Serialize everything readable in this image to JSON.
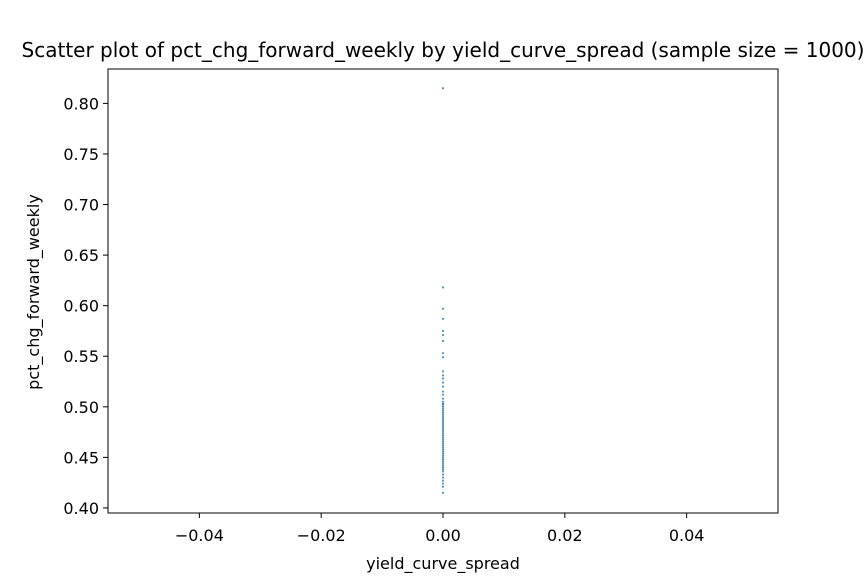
{
  "chart_data": {
    "type": "scatter",
    "title": "Scatter plot of pct_chg_forward_weekly by yield_curve_spread (sample size = 1000)",
    "xlabel": "yield_curve_spread",
    "ylabel": "pct_chg_forward_weekly",
    "xlim": [
      -0.055,
      0.055
    ],
    "ylim": [
      0.395,
      0.834
    ],
    "xticks": [
      -0.04,
      -0.02,
      0.0,
      0.02,
      0.04
    ],
    "xtick_labels": [
      "−0.04",
      "−0.02",
      "0.00",
      "0.02",
      "0.04"
    ],
    "yticks": [
      0.4,
      0.45,
      0.5,
      0.55,
      0.6,
      0.65,
      0.7,
      0.75,
      0.8
    ],
    "ytick_labels": [
      "0.40",
      "0.45",
      "0.50",
      "0.55",
      "0.60",
      "0.65",
      "0.70",
      "0.75",
      "0.80"
    ],
    "grid": false,
    "marker_color": "#1f77b4",
    "series": [
      {
        "x_constant": 0.0,
        "y": [
          0.815,
          0.618,
          0.597,
          0.587,
          0.575,
          0.571,
          0.565,
          0.553,
          0.549,
          0.535,
          0.531,
          0.528,
          0.524,
          0.52,
          0.515,
          0.512,
          0.508,
          0.505,
          0.503,
          0.502,
          0.5,
          0.498,
          0.496,
          0.494,
          0.492,
          0.49,
          0.488,
          0.486,
          0.484,
          0.482,
          0.48,
          0.478,
          0.476,
          0.474,
          0.472,
          0.47,
          0.468,
          0.466,
          0.464,
          0.462,
          0.46,
          0.458,
          0.456,
          0.454,
          0.452,
          0.45,
          0.448,
          0.446,
          0.444,
          0.442,
          0.44,
          0.438,
          0.436,
          0.433,
          0.43,
          0.427,
          0.424,
          0.421,
          0.415
        ]
      }
    ]
  }
}
